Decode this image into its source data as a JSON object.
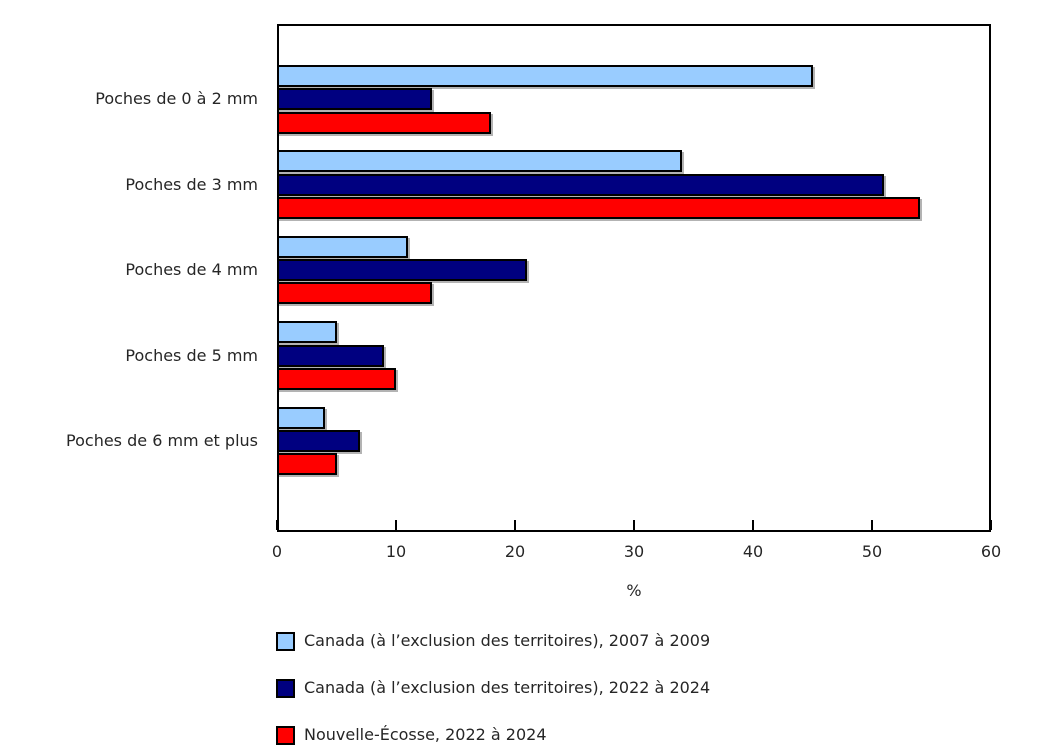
{
  "chart_data": {
    "type": "bar",
    "orientation": "horizontal",
    "title": "",
    "categories": [
      "Poches de 0 à 2 mm",
      "Poches de 3 mm",
      "Poches de 4 mm",
      "Poches de 5 mm",
      "Poches de 6 mm et plus"
    ],
    "series": [
      {
        "name": "Canada (à l’exclusion des territoires), 2007 à 2009",
        "color": "#99CCFF",
        "values": [
          45,
          34,
          11,
          5,
          4
        ]
      },
      {
        "name": "Canada (à l’exclusion des territoires), 2022 à 2024",
        "color": "#000080",
        "values": [
          13,
          51,
          21,
          9,
          7
        ]
      },
      {
        "name": "Nouvelle-Écosse, 2022 à 2024",
        "color": "#FF0000",
        "values": [
          18,
          54,
          13,
          10,
          5
        ]
      }
    ],
    "xlabel": "%",
    "ylabel": "",
    "xlim": [
      0,
      60
    ],
    "xticks": [
      0,
      10,
      20,
      30,
      40,
      50,
      60
    ],
    "grid": false,
    "legend_position": "bottom-left",
    "bar_border_color": "#000000",
    "plot_border_color": "#000000",
    "background": "#FFFFFF"
  }
}
